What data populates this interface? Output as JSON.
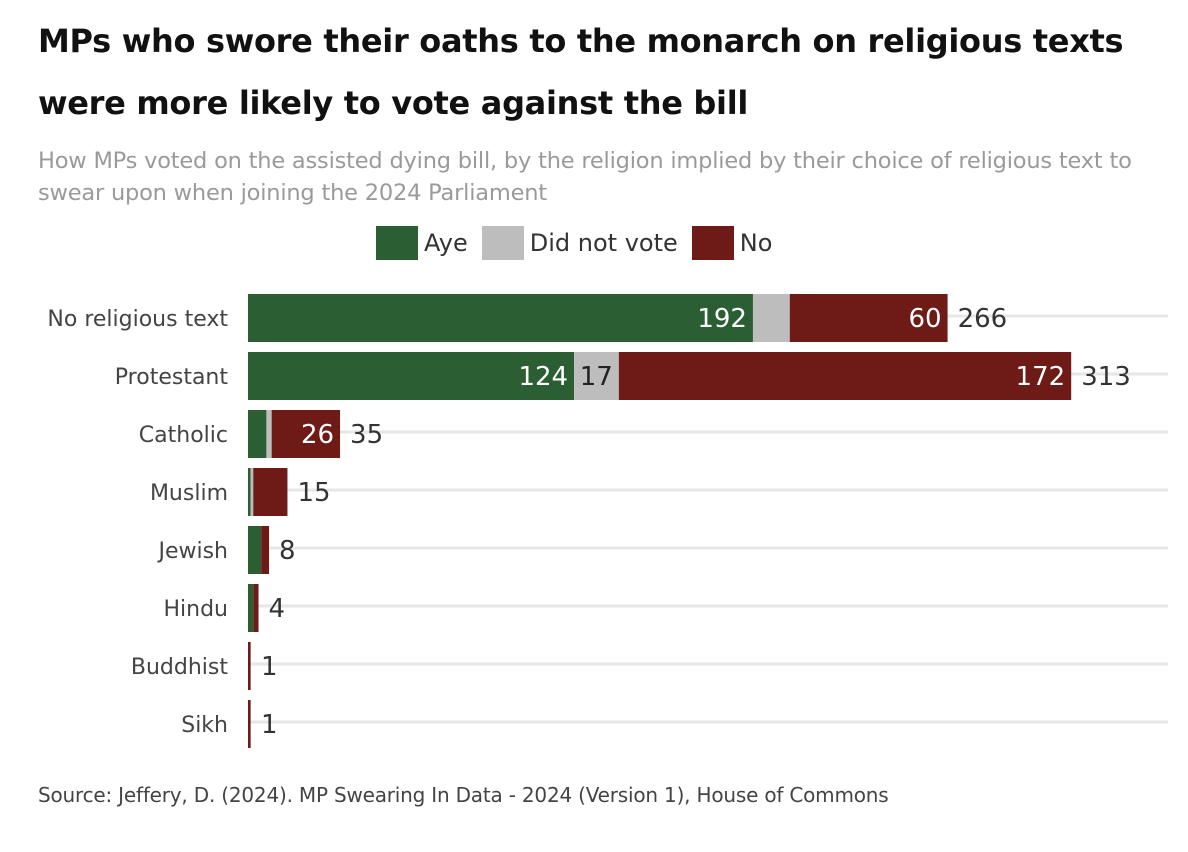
{
  "title": "MPs who swore their oaths to the monarch on religious texts were more likely to vote against the bill",
  "subtitle": "How MPs voted on the assisted dying bill, by the religion implied by their choice of religious text to swear upon when joining the 2024 Parliament",
  "source": "Source: Jeffery, D. (2024). MP Swearing In Data - 2024 (Version 1), House of Commons",
  "chart_data": {
    "type": "bar",
    "orientation": "horizontal",
    "stacked": true,
    "categories": [
      "No religious text",
      "Protestant",
      "Catholic",
      "Muslim",
      "Jewish",
      "Hindu",
      "Buddhist",
      "Sikh"
    ],
    "series": [
      {
        "name": "Aye",
        "color": "#2c5e34",
        "values": [
          192,
          124,
          7,
          1,
          5,
          2,
          0,
          0
        ],
        "labels": [
          "192",
          "124",
          "",
          "",
          "",
          "",
          "",
          ""
        ]
      },
      {
        "name": "Did not vote",
        "color": "#bdbdbd",
        "values": [
          14,
          17,
          2,
          1,
          0,
          0,
          0,
          0
        ],
        "labels": [
          "",
          "17",
          "",
          "",
          "",
          "",
          "",
          ""
        ]
      },
      {
        "name": "No",
        "color": "#6e1a17",
        "values": [
          60,
          172,
          26,
          13,
          3,
          2,
          1,
          1
        ],
        "labels": [
          "60",
          "172",
          "26",
          "",
          "",
          "",
          "",
          ""
        ]
      }
    ],
    "totals": [
      266,
      313,
      35,
      15,
      8,
      4,
      1,
      1
    ],
    "xlim": [
      0,
      350
    ],
    "legend_position": "top",
    "grid": true
  }
}
